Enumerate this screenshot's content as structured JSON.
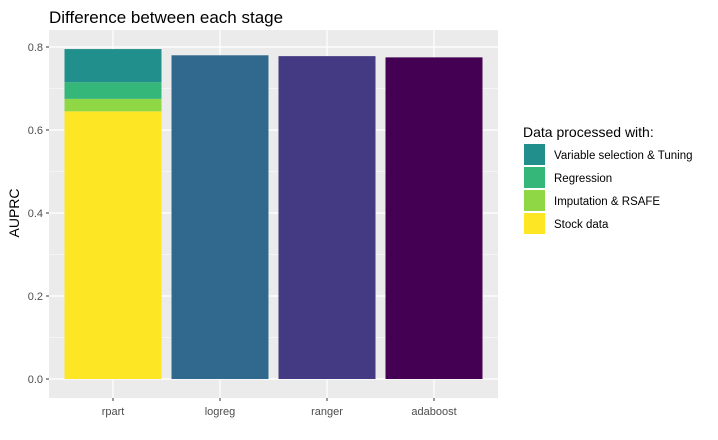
{
  "chart_data": {
    "type": "bar",
    "title": "Difference between each stage",
    "xlabel": "",
    "ylabel": "AUPRC",
    "ylim": [
      0,
      0.8
    ],
    "yticks": [
      0.0,
      0.2,
      0.4,
      0.6,
      0.8
    ],
    "ytick_labels": [
      "0.0",
      "0.2",
      "0.4",
      "0.6",
      "0.8"
    ],
    "categories": [
      "rpart",
      "logreg",
      "ranger",
      "adaboost"
    ],
    "stacked_bar": {
      "category": "rpart",
      "segments": [
        {
          "name": "Stock data",
          "value": 0.645,
          "color": "#FDE725"
        },
        {
          "name": "Imputation & RSAFE",
          "value": 0.03,
          "color": "#8FD744"
        },
        {
          "name": "Regression",
          "value": 0.04,
          "color": "#35B779"
        },
        {
          "name": "Variable selection & Tuning",
          "value": 0.08,
          "color": "#21908C"
        }
      ],
      "total": 0.795
    },
    "bars": [
      {
        "category": "logreg",
        "value": 0.78,
        "color": "#31688E"
      },
      {
        "category": "ranger",
        "value": 0.778,
        "color": "#443A83"
      },
      {
        "category": "adaboost",
        "value": 0.775,
        "color": "#440154"
      }
    ],
    "legend": {
      "title": "Data processed with:",
      "position": "right",
      "items": [
        {
          "label": "Variable selection & Tuning",
          "color": "#21908C"
        },
        {
          "label": "Regression",
          "color": "#35B779"
        },
        {
          "label": "Imputation & RSAFE",
          "color": "#8FD744"
        },
        {
          "label": "Stock data",
          "color": "#FDE725"
        }
      ]
    },
    "grid": true,
    "panel_background": "#EBEBEB",
    "grid_color": "#FFFFFF"
  }
}
